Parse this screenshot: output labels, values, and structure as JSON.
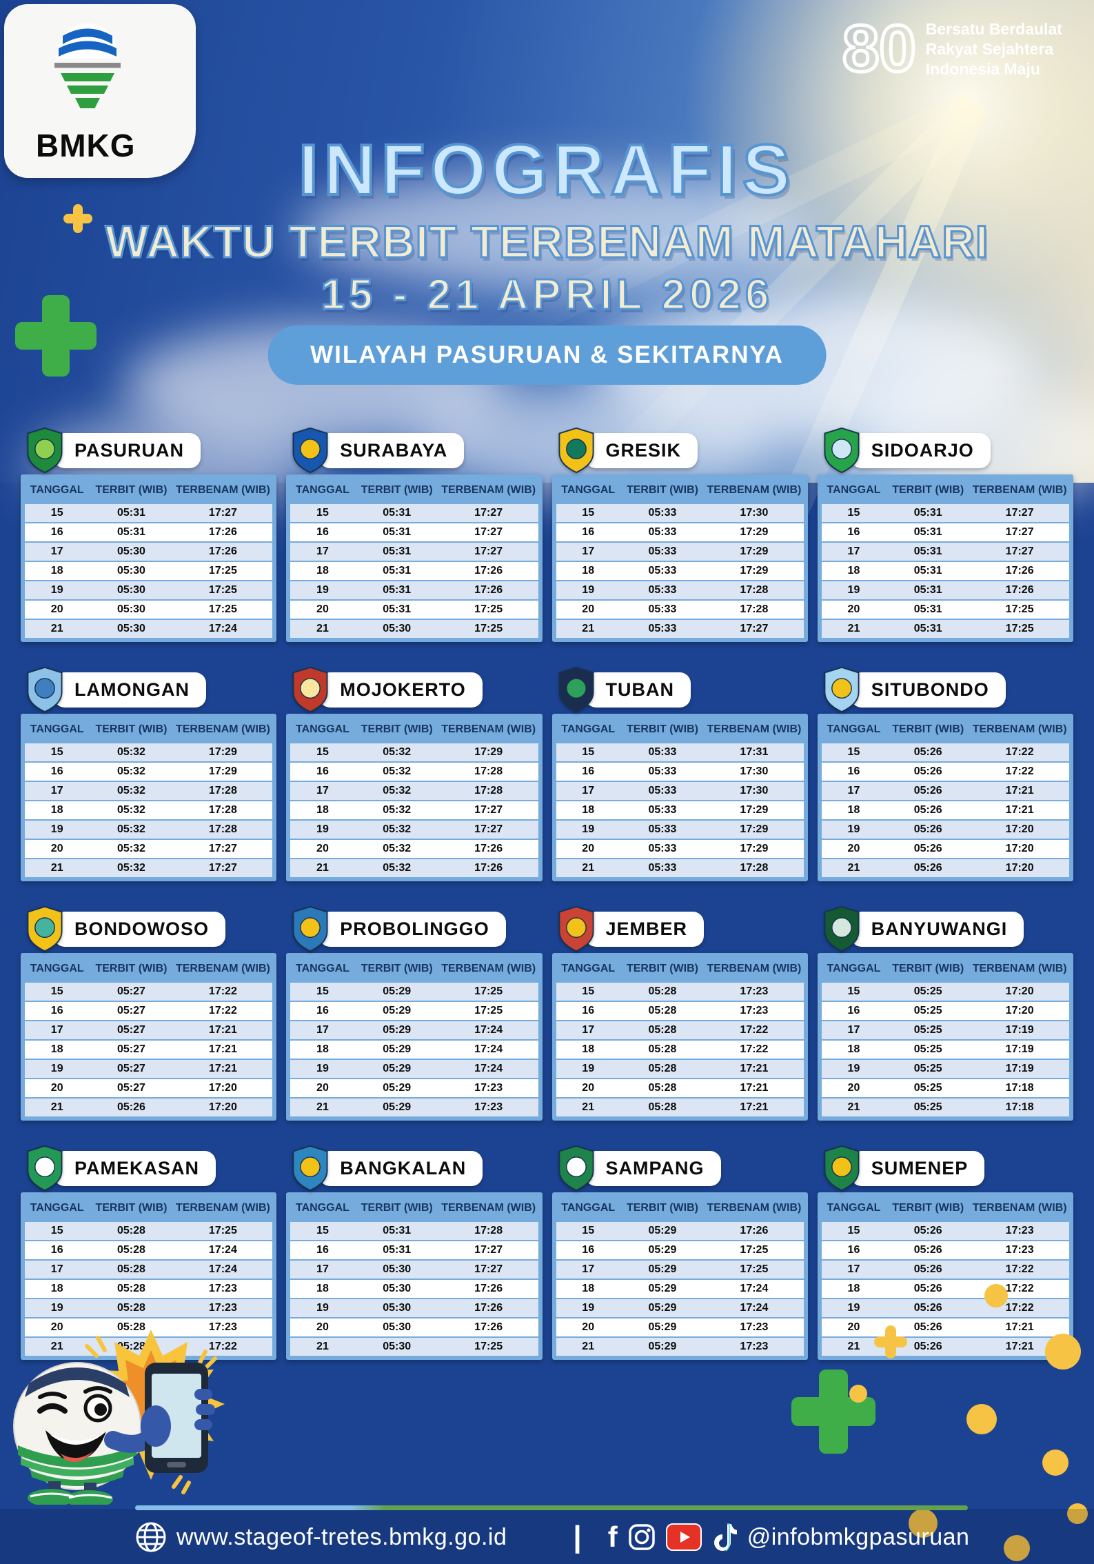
{
  "header": {
    "logo_text": "BMKG",
    "anniversary": {
      "number": "80",
      "lines": [
        "Bersatu Berdaulat",
        "Rakyat Sejahtera",
        "Indonesia Maju"
      ]
    },
    "title": "INFOGRAFIS",
    "subtitle": "WAKTU TERBIT TERBENAM MATAHARI",
    "date_range": "15 - 21 APRIL 2026",
    "region_pill": "WILAYAH PASURUAN & SEKITARNYA"
  },
  "table": {
    "columns": [
      "TANGGAL",
      "TERBIT (WIB)",
      "TERBENAM (WIB)"
    ]
  },
  "cities": [
    {
      "name": "PASURUAN",
      "emblem_colors": [
        "#1e8a3c",
        "#8fd14f"
      ],
      "rows": [
        [
          "15",
          "05:31",
          "17:27"
        ],
        [
          "16",
          "05:31",
          "17:26"
        ],
        [
          "17",
          "05:30",
          "17:26"
        ],
        [
          "18",
          "05:30",
          "17:25"
        ],
        [
          "19",
          "05:30",
          "17:25"
        ],
        [
          "20",
          "05:30",
          "17:25"
        ],
        [
          "21",
          "05:30",
          "17:24"
        ]
      ]
    },
    {
      "name": "SURABAYA",
      "emblem_colors": [
        "#1857b0",
        "#f2c218"
      ],
      "rows": [
        [
          "15",
          "05:31",
          "17:27"
        ],
        [
          "16",
          "05:31",
          "17:27"
        ],
        [
          "17",
          "05:31",
          "17:27"
        ],
        [
          "18",
          "05:31",
          "17:26"
        ],
        [
          "19",
          "05:31",
          "17:26"
        ],
        [
          "20",
          "05:31",
          "17:25"
        ],
        [
          "21",
          "05:30",
          "17:25"
        ]
      ]
    },
    {
      "name": "GRESIK",
      "emblem_colors": [
        "#f2c218",
        "#13795b"
      ],
      "rows": [
        [
          "15",
          "05:33",
          "17:30"
        ],
        [
          "16",
          "05:33",
          "17:29"
        ],
        [
          "17",
          "05:33",
          "17:29"
        ],
        [
          "18",
          "05:33",
          "17:29"
        ],
        [
          "19",
          "05:33",
          "17:28"
        ],
        [
          "20",
          "05:33",
          "17:28"
        ],
        [
          "21",
          "05:33",
          "17:27"
        ]
      ]
    },
    {
      "name": "SIDOARJO",
      "emblem_colors": [
        "#27a349",
        "#cfe6f5"
      ],
      "rows": [
        [
          "15",
          "05:31",
          "17:27"
        ],
        [
          "16",
          "05:31",
          "17:27"
        ],
        [
          "17",
          "05:31",
          "17:27"
        ],
        [
          "18",
          "05:31",
          "17:26"
        ],
        [
          "19",
          "05:31",
          "17:26"
        ],
        [
          "20",
          "05:31",
          "17:25"
        ],
        [
          "21",
          "05:31",
          "17:25"
        ]
      ]
    },
    {
      "name": "LAMONGAN",
      "emblem_colors": [
        "#8ec1e8",
        "#3f7fc1"
      ],
      "rows": [
        [
          "15",
          "05:32",
          "17:29"
        ],
        [
          "16",
          "05:32",
          "17:29"
        ],
        [
          "17",
          "05:32",
          "17:28"
        ],
        [
          "18",
          "05:32",
          "17:28"
        ],
        [
          "19",
          "05:32",
          "17:28"
        ],
        [
          "20",
          "05:32",
          "17:27"
        ],
        [
          "21",
          "05:32",
          "17:27"
        ]
      ]
    },
    {
      "name": "MOJOKERTO",
      "emblem_colors": [
        "#c0392b",
        "#f9e79f"
      ],
      "rows": [
        [
          "15",
          "05:32",
          "17:29"
        ],
        [
          "16",
          "05:32",
          "17:28"
        ],
        [
          "17",
          "05:32",
          "17:28"
        ],
        [
          "18",
          "05:32",
          "17:27"
        ],
        [
          "19",
          "05:32",
          "17:27"
        ],
        [
          "20",
          "05:32",
          "17:26"
        ],
        [
          "21",
          "05:32",
          "17:26"
        ]
      ]
    },
    {
      "name": "TUBAN",
      "emblem_colors": [
        "#1b2d4f",
        "#2ea05a"
      ],
      "rows": [
        [
          "15",
          "05:33",
          "17:31"
        ],
        [
          "16",
          "05:33",
          "17:30"
        ],
        [
          "17",
          "05:33",
          "17:30"
        ],
        [
          "18",
          "05:33",
          "17:29"
        ],
        [
          "19",
          "05:33",
          "17:29"
        ],
        [
          "20",
          "05:33",
          "17:29"
        ],
        [
          "21",
          "05:33",
          "17:28"
        ]
      ]
    },
    {
      "name": "SITUBONDO",
      "emblem_colors": [
        "#a5d4f0",
        "#f2c218"
      ],
      "rows": [
        [
          "15",
          "05:26",
          "17:22"
        ],
        [
          "16",
          "05:26",
          "17:22"
        ],
        [
          "17",
          "05:26",
          "17:21"
        ],
        [
          "18",
          "05:26",
          "17:21"
        ],
        [
          "19",
          "05:26",
          "17:20"
        ],
        [
          "20",
          "05:26",
          "17:20"
        ],
        [
          "21",
          "05:26",
          "17:20"
        ]
      ]
    },
    {
      "name": "BONDOWOSO",
      "emblem_colors": [
        "#f2c218",
        "#45b39d"
      ],
      "rows": [
        [
          "15",
          "05:27",
          "17:22"
        ],
        [
          "16",
          "05:27",
          "17:22"
        ],
        [
          "17",
          "05:27",
          "17:21"
        ],
        [
          "18",
          "05:27",
          "17:21"
        ],
        [
          "19",
          "05:27",
          "17:21"
        ],
        [
          "20",
          "05:27",
          "17:20"
        ],
        [
          "21",
          "05:26",
          "17:20"
        ]
      ]
    },
    {
      "name": "PROBOLINGGO",
      "emblem_colors": [
        "#2b79b8",
        "#f2c218"
      ],
      "rows": [
        [
          "15",
          "05:29",
          "17:25"
        ],
        [
          "16",
          "05:29",
          "17:25"
        ],
        [
          "17",
          "05:29",
          "17:24"
        ],
        [
          "18",
          "05:29",
          "17:24"
        ],
        [
          "19",
          "05:29",
          "17:24"
        ],
        [
          "20",
          "05:29",
          "17:23"
        ],
        [
          "21",
          "05:29",
          "17:23"
        ]
      ]
    },
    {
      "name": "JEMBER",
      "emblem_colors": [
        "#cb4335",
        "#f2c218"
      ],
      "rows": [
        [
          "15",
          "05:28",
          "17:23"
        ],
        [
          "16",
          "05:28",
          "17:23"
        ],
        [
          "17",
          "05:28",
          "17:22"
        ],
        [
          "18",
          "05:28",
          "17:22"
        ],
        [
          "19",
          "05:28",
          "17:21"
        ],
        [
          "20",
          "05:28",
          "17:21"
        ],
        [
          "21",
          "05:28",
          "17:21"
        ]
      ]
    },
    {
      "name": "BANYUWANGI",
      "emblem_colors": [
        "#145a32",
        "#d5e8dd"
      ],
      "rows": [
        [
          "15",
          "05:25",
          "17:20"
        ],
        [
          "16",
          "05:25",
          "17:20"
        ],
        [
          "17",
          "05:25",
          "17:19"
        ],
        [
          "18",
          "05:25",
          "17:19"
        ],
        [
          "19",
          "05:25",
          "17:19"
        ],
        [
          "20",
          "05:25",
          "17:18"
        ],
        [
          "21",
          "05:25",
          "17:18"
        ]
      ]
    },
    {
      "name": "PAMEKASAN",
      "emblem_colors": [
        "#229954",
        "#fdfefe"
      ],
      "rows": [
        [
          "15",
          "05:28",
          "17:25"
        ],
        [
          "16",
          "05:28",
          "17:24"
        ],
        [
          "17",
          "05:28",
          "17:24"
        ],
        [
          "18",
          "05:28",
          "17:23"
        ],
        [
          "19",
          "05:28",
          "17:23"
        ],
        [
          "20",
          "05:28",
          "17:23"
        ],
        [
          "21",
          "05:28",
          "17:22"
        ]
      ]
    },
    {
      "name": "BANGKALAN",
      "emblem_colors": [
        "#2e86c1",
        "#f2c218"
      ],
      "rows": [
        [
          "15",
          "05:31",
          "17:28"
        ],
        [
          "16",
          "05:31",
          "17:27"
        ],
        [
          "17",
          "05:30",
          "17:27"
        ],
        [
          "18",
          "05:30",
          "17:26"
        ],
        [
          "19",
          "05:30",
          "17:26"
        ],
        [
          "20",
          "05:30",
          "17:26"
        ],
        [
          "21",
          "05:30",
          "17:25"
        ]
      ]
    },
    {
      "name": "SAMPANG",
      "emblem_colors": [
        "#1e8449",
        "#fdfefe"
      ],
      "rows": [
        [
          "15",
          "05:29",
          "17:26"
        ],
        [
          "16",
          "05:29",
          "17:25"
        ],
        [
          "17",
          "05:29",
          "17:25"
        ],
        [
          "18",
          "05:29",
          "17:24"
        ],
        [
          "19",
          "05:29",
          "17:24"
        ],
        [
          "20",
          "05:29",
          "17:23"
        ],
        [
          "21",
          "05:29",
          "17:23"
        ]
      ]
    },
    {
      "name": "SUMENEP",
      "emblem_colors": [
        "#1d8348",
        "#f2c218"
      ],
      "rows": [
        [
          "15",
          "05:26",
          "17:23"
        ],
        [
          "16",
          "05:26",
          "17:23"
        ],
        [
          "17",
          "05:26",
          "17:22"
        ],
        [
          "18",
          "05:26",
          "17:22"
        ],
        [
          "19",
          "05:26",
          "17:22"
        ],
        [
          "20",
          "05:26",
          "17:21"
        ],
        [
          "21",
          "05:26",
          "17:21"
        ]
      ]
    }
  ],
  "footer": {
    "website": "www.stageof-tretes.bmkg.go.id",
    "divider": "|",
    "facebook_glyph": "f",
    "handle": "@infobmkgpasuruan",
    "icons": [
      "globe-icon",
      "facebook-icon",
      "instagram-icon",
      "youtube-icon",
      "tiktok-icon"
    ]
  },
  "colors": {
    "background": "#1c4392",
    "table_frame": "#76abde",
    "row_alt": "#dbe5f3",
    "headline_fill": "#cde8fc",
    "headline_stroke": "#5795d2",
    "cream_text": "#f4ebd3",
    "pill_blue": "#5f9fd9",
    "decor_green": "#3fae49",
    "decor_yellow": "#f6c344",
    "youtube_red": "#e53126"
  }
}
